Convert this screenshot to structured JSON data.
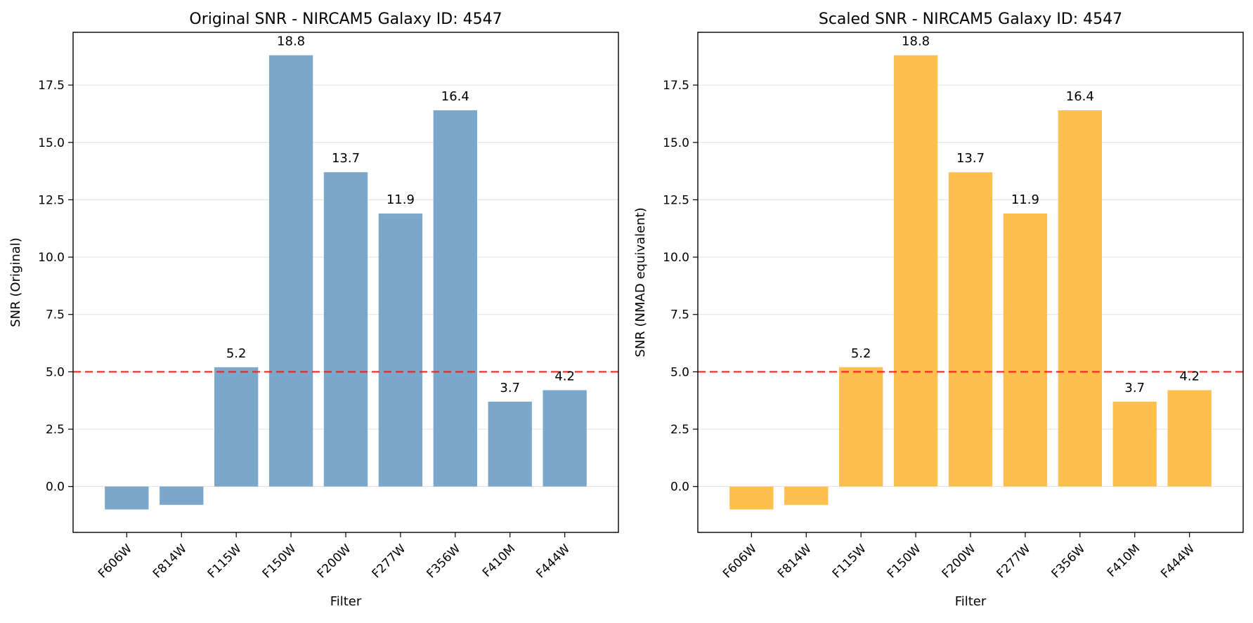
{
  "colors": {
    "original_bars": "#7ba7cb",
    "scaled_bars": "#fdbf4d",
    "threshold": "#ee1c1c",
    "grid": "#d9d9d9"
  },
  "chart_data": [
    {
      "type": "bar",
      "title": "Original SNR - NIRCAM5 Galaxy ID: 4547",
      "xlabel": "Filter",
      "ylabel": "SNR (Original)",
      "categories": [
        "F606W",
        "F814W",
        "F115W",
        "F150W",
        "F200W",
        "F277W",
        "F356W",
        "F410M",
        "F444W"
      ],
      "values": [
        -1.0,
        -0.8,
        5.2,
        18.8,
        13.7,
        11.9,
        16.4,
        3.7,
        4.2
      ],
      "value_labels": [
        "",
        "",
        "5.2",
        "18.8",
        "13.7",
        "11.9",
        "16.4",
        "3.7",
        "4.2"
      ],
      "ylim": [
        -2.0,
        19.8
      ],
      "yticks": [
        "0.0",
        "2.5",
        "5.0",
        "7.5",
        "10.0",
        "12.5",
        "15.0",
        "17.5"
      ],
      "threshold": 5.0,
      "grid": "y-axis",
      "legend": "none",
      "bar_color": "#7ba7cb"
    },
    {
      "type": "bar",
      "title": "Scaled SNR - NIRCAM5 Galaxy ID: 4547",
      "xlabel": "Filter",
      "ylabel": "SNR (NMAD equivalent)",
      "categories": [
        "F606W",
        "F814W",
        "F115W",
        "F150W",
        "F200W",
        "F277W",
        "F356W",
        "F410M",
        "F444W"
      ],
      "values": [
        -1.0,
        -0.8,
        5.2,
        18.8,
        13.7,
        11.9,
        16.4,
        3.7,
        4.2
      ],
      "value_labels": [
        "",
        "",
        "5.2",
        "18.8",
        "13.7",
        "11.9",
        "16.4",
        "3.7",
        "4.2"
      ],
      "ylim": [
        -2.0,
        19.8
      ],
      "yticks": [
        "0.0",
        "2.5",
        "5.0",
        "7.5",
        "10.0",
        "12.5",
        "15.0",
        "17.5"
      ],
      "threshold": 5.0,
      "grid": "y-axis",
      "legend": "none",
      "bar_color": "#fdbf4d"
    }
  ]
}
